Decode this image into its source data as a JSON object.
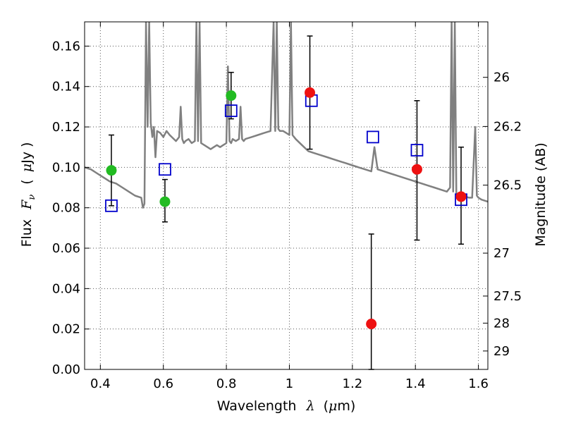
{
  "chart_data": {
    "type": "scatter",
    "xlabel_text": "Wavelength",
    "xlabel_symbol": "λ",
    "xlabel_unit_open": "(",
    "xlabel_unit_mu": "μ",
    "xlabel_unit_rest": "m)",
    "ylabel_text": "Flux",
    "ylabel_symbol": "F",
    "ylabel_subscript": "ν",
    "ylabel_unit_open": "(",
    "ylabel_unit_mu": "μ",
    "ylabel_unit_rest": "Jy )",
    "y2label": "Magnitude (AB)",
    "xlim": [
      0.35,
      1.63
    ],
    "ylim": [
      0.0,
      0.172
    ],
    "grid": true,
    "x_ticks": [
      0.4,
      0.6,
      0.8,
      1.0,
      1.2,
      1.4,
      1.6
    ],
    "x_tick_labels": [
      "0.4",
      "0.6",
      "0.8",
      "1",
      "1.2",
      "1.4",
      "1.6"
    ],
    "y_ticks": [
      0.0,
      0.02,
      0.04,
      0.06,
      0.08,
      0.1,
      0.12,
      0.14,
      0.16
    ],
    "y_tick_labels": [
      "0.00",
      "0.02",
      "0.04",
      "0.06",
      "0.08",
      "0.10",
      "0.12",
      "0.14",
      "0.16"
    ],
    "mag_ticks": [
      26,
      26.2,
      26.5,
      27,
      27.5,
      28,
      29
    ],
    "mag_tick_labels": [
      "26",
      "26.2",
      "26.5",
      "27",
      "27.5",
      "28",
      "29"
    ],
    "colors": {
      "model": "#808080",
      "green": "#22bb22",
      "red": "#ee1111",
      "square": "#0000cc",
      "error": "#000000",
      "grid": "#555555"
    },
    "series": [
      {
        "name": "model spectrum",
        "kind": "line",
        "x": [
          0.35,
          0.37,
          0.39,
          0.41,
          0.43,
          0.45,
          0.47,
          0.49,
          0.51,
          0.53,
          0.535,
          0.54,
          0.545,
          0.55,
          0.555,
          0.56,
          0.565,
          0.57,
          0.575,
          0.58,
          0.59,
          0.6,
          0.61,
          0.62,
          0.64,
          0.65,
          0.655,
          0.66,
          0.665,
          0.67,
          0.68,
          0.69,
          0.7,
          0.705,
          0.71,
          0.715,
          0.72,
          0.73,
          0.74,
          0.75,
          0.76,
          0.77,
          0.78,
          0.79,
          0.8,
          0.805,
          0.81,
          0.815,
          0.82,
          0.83,
          0.84,
          0.845,
          0.85,
          0.855,
          0.86,
          0.88,
          0.9,
          0.92,
          0.94,
          0.945,
          0.95,
          0.955,
          0.96,
          0.965,
          0.97,
          0.98,
          0.99,
          1.0,
          1.005,
          1.01,
          1.02,
          1.04,
          1.06,
          1.08,
          1.1,
          1.12,
          1.14,
          1.16,
          1.18,
          1.2,
          1.22,
          1.24,
          1.26,
          1.27,
          1.28,
          1.3,
          1.32,
          1.34,
          1.36,
          1.38,
          1.4,
          1.42,
          1.44,
          1.46,
          1.48,
          1.5,
          1.51,
          1.515,
          1.52,
          1.525,
          1.53,
          1.55,
          1.57,
          1.58,
          1.59,
          1.595,
          1.6,
          1.61,
          1.63
        ],
        "y": [
          0.1,
          0.099,
          0.097,
          0.095,
          0.093,
          0.092,
          0.09,
          0.088,
          0.086,
          0.085,
          0.08,
          0.082,
          0.172,
          0.12,
          0.172,
          0.122,
          0.115,
          0.12,
          0.105,
          0.118,
          0.117,
          0.115,
          0.118,
          0.116,
          0.113,
          0.115,
          0.13,
          0.114,
          0.112,
          0.113,
          0.114,
          0.112,
          0.113,
          0.172,
          0.113,
          0.172,
          0.112,
          0.111,
          0.11,
          0.109,
          0.11,
          0.111,
          0.11,
          0.111,
          0.112,
          0.15,
          0.113,
          0.112,
          0.114,
          0.113,
          0.114,
          0.13,
          0.114,
          0.113,
          0.114,
          0.115,
          0.116,
          0.117,
          0.118,
          0.145,
          0.172,
          0.118,
          0.172,
          0.119,
          0.118,
          0.118,
          0.117,
          0.116,
          0.172,
          0.116,
          0.114,
          0.111,
          0.108,
          0.107,
          0.106,
          0.105,
          0.104,
          0.103,
          0.102,
          0.101,
          0.1,
          0.099,
          0.098,
          0.11,
          0.099,
          0.098,
          0.097,
          0.096,
          0.095,
          0.094,
          0.093,
          0.092,
          0.091,
          0.09,
          0.089,
          0.088,
          0.09,
          0.172,
          0.088,
          0.172,
          0.087,
          0.086,
          0.085,
          0.085,
          0.12,
          0.086,
          0.085,
          0.084,
          0.083
        ]
      },
      {
        "name": "green points",
        "kind": "points",
        "x": [
          0.435,
          0.605,
          0.815
        ],
        "y": [
          0.0985,
          0.083,
          0.1355
        ]
      },
      {
        "name": "red points",
        "kind": "points",
        "x": [
          1.065,
          1.26,
          1.405,
          1.545
        ],
        "y": [
          0.137,
          0.0225,
          0.099,
          0.0855
        ]
      },
      {
        "name": "open squares",
        "kind": "points",
        "x": [
          0.435,
          0.605,
          0.815,
          1.07,
          1.265,
          1.405,
          1.545
        ],
        "y": [
          0.081,
          0.099,
          0.128,
          0.133,
          0.115,
          0.1085,
          0.084
        ]
      },
      {
        "name": "error bars",
        "kind": "errorbar",
        "x": [
          0.435,
          0.605,
          0.815,
          1.065,
          1.26,
          1.405,
          1.545
        ],
        "ylow": [
          0.081,
          0.073,
          0.124,
          0.109,
          0.0,
          0.064,
          0.062
        ],
        "yhigh": [
          0.116,
          0.094,
          0.147,
          0.165,
          0.067,
          0.133,
          0.11
        ]
      }
    ]
  }
}
